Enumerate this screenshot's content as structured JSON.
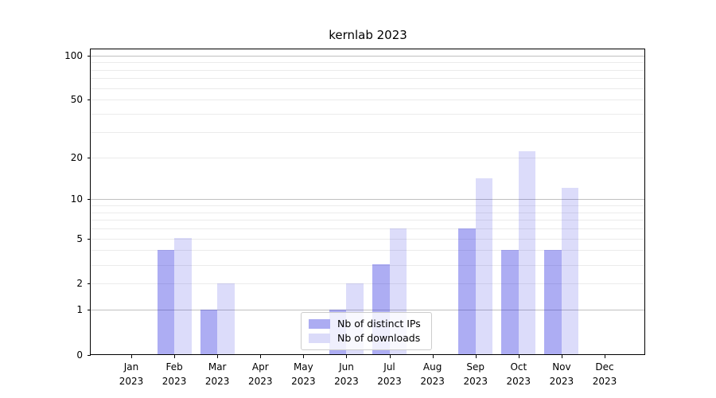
{
  "chart_data": {
    "type": "bar",
    "title": "kernlab 2023",
    "categories": [
      "Jan 2023",
      "Feb 2023",
      "Mar 2023",
      "Apr 2023",
      "May 2023",
      "Jun 2023",
      "Jul 2023",
      "Aug 2023",
      "Sep 2023",
      "Oct 2023",
      "Nov 2023",
      "Dec 2023"
    ],
    "series": [
      {
        "name": "Nb of distinct IPs",
        "values": [
          0,
          4,
          1,
          0,
          0,
          1,
          3,
          0,
          6,
          4,
          4,
          0
        ],
        "color": "#acacf2",
        "fill": "rgba(20,20,220,0.35)"
      },
      {
        "name": "Nb of downloads",
        "values": [
          0,
          5,
          2,
          0,
          0,
          2,
          6,
          0,
          14,
          22,
          12,
          0
        ],
        "color": "#dbdbf9",
        "fill": "rgba(20,20,220,0.15)"
      }
    ],
    "xlabel": "",
    "ylabel": "",
    "yscale": "log1p",
    "ylim": [
      0,
      110
    ],
    "grid": true,
    "y_tick_values": [
      0,
      1,
      2,
      5,
      10,
      20,
      50,
      100
    ],
    "y_tick_labels": [
      "0",
      "1",
      "2",
      "5",
      "10",
      "20",
      "50",
      "100"
    ],
    "gridlines_major": [
      1,
      10,
      100
    ],
    "gridlines_minor": [
      2,
      3,
      4,
      5,
      6,
      7,
      8,
      9,
      20,
      30,
      40,
      50,
      60,
      70,
      80,
      90
    ],
    "legend": {
      "position": "lower center",
      "labels": [
        "Nb of distinct IPs",
        "Nb of downloads"
      ]
    }
  },
  "colors": {
    "background": "#ffffff",
    "spine": "#000000",
    "text": "#000000",
    "grid_major": "#c0c0c0",
    "grid_minor": "#ebebeb",
    "legend_border": "#cccccc",
    "legend_background": "rgba(255,255,255,0.8)"
  }
}
